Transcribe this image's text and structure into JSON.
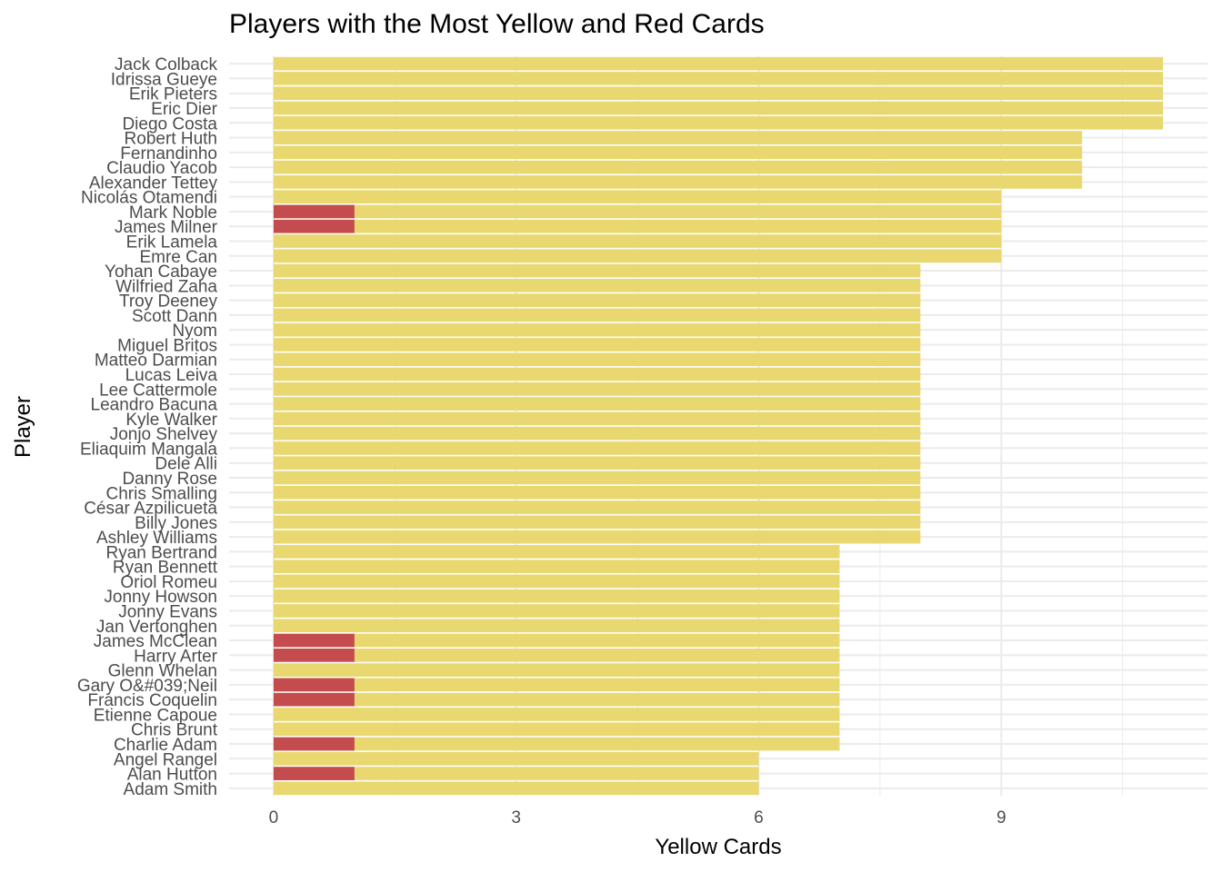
{
  "chart_data": {
    "type": "bar",
    "orientation": "horizontal",
    "title": "Players with the Most Yellow and Red Cards",
    "xlabel": "Yellow Cards",
    "ylabel": "Player",
    "xlim": [
      -0.55,
      11.55
    ],
    "x_ticks": [
      0,
      3,
      6,
      9
    ],
    "grid": true,
    "categories": [
      "Jack Colback",
      "Idrissa Gueye",
      "Erik Pieters",
      "Eric Dier",
      "Diego Costa",
      "Robert Huth",
      "Fernandinho",
      "Claudio Yacob",
      "Alexander Tettey",
      "Nicolás Otamendi",
      "Mark Noble",
      "James Milner",
      "Erik Lamela",
      "Emre Can",
      "Yohan Cabaye",
      "Wilfried Zaha",
      "Troy Deeney",
      "Scott Dann",
      "Nyom",
      "Miguel Britos",
      "Matteo Darmian",
      "Lucas Leiva",
      "Lee Cattermole",
      "Leandro Bacuna",
      "Kyle Walker",
      "Jonjo Shelvey",
      "Eliaquim Mangala",
      "Dele Alli",
      "Danny Rose",
      "Chris Smalling",
      "César Azpilicueta",
      "Billy Jones",
      "Ashley Williams",
      "Ryan Bertrand",
      "Ryan Bennett",
      "Oriol Romeu",
      "Jonny Howson",
      "Jonny Evans",
      "Jan Vertonghen",
      "James McClean",
      "Harry Arter",
      "Glenn Whelan",
      "Gary O&#039;Neil",
      "Francis Coquelin",
      "Etienne Capoue",
      "Chris Brunt",
      "Charlie Adam",
      "Angel Rangel",
      "Alan Hutton",
      "Adam Smith"
    ],
    "series": [
      {
        "color": "#e8d86f",
        "values": [
          11,
          11,
          11,
          11,
          11,
          10,
          10,
          10,
          10,
          9,
          9,
          9,
          9,
          9,
          8,
          8,
          8,
          8,
          8,
          8,
          8,
          8,
          8,
          8,
          8,
          8,
          8,
          8,
          8,
          8,
          8,
          8,
          8,
          7,
          7,
          7,
          7,
          7,
          7,
          7,
          7,
          7,
          7,
          7,
          7,
          7,
          7,
          6,
          6,
          6
        ]
      },
      {
        "color": "#c44b4e",
        "values": [
          0,
          0,
          0,
          0,
          0,
          0,
          0,
          0,
          0,
          0,
          1,
          1,
          0,
          0,
          0,
          0,
          0,
          0,
          0,
          0,
          0,
          0,
          0,
          0,
          0,
          0,
          0,
          0,
          0,
          0,
          0,
          0,
          0,
          0,
          0,
          0,
          0,
          0,
          0,
          1,
          1,
          0,
          1,
          1,
          0,
          0,
          1,
          0,
          1,
          0
        ]
      }
    ]
  }
}
